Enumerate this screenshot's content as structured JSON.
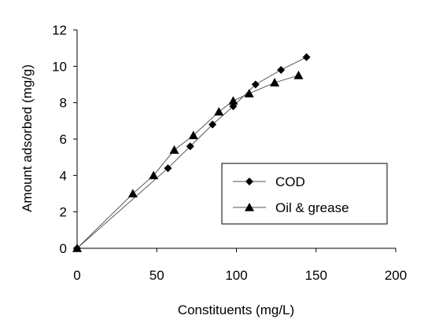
{
  "chart_data": {
    "type": "line",
    "xlabel": "Constituents (mg/L)",
    "ylabel": "Amount adsorbed (mg/g)",
    "xlim": [
      0,
      200
    ],
    "ylim": [
      0,
      12
    ],
    "xticks": [
      0,
      50,
      100,
      150,
      200
    ],
    "yticks": [
      0,
      2,
      4,
      6,
      8,
      10,
      12
    ],
    "grid": false,
    "legend": "right-center",
    "series": [
      {
        "name": "COD",
        "marker": "diamond",
        "color": "#000000",
        "points": [
          [
            0,
            0
          ],
          [
            57,
            4.4
          ],
          [
            71,
            5.6
          ],
          [
            85,
            6.8
          ],
          [
            98,
            7.8
          ],
          [
            112,
            9.0
          ],
          [
            128,
            9.8
          ],
          [
            144,
            10.5
          ]
        ]
      },
      {
        "name": "Oil & grease",
        "marker": "triangle",
        "color": "#000000",
        "points": [
          [
            0,
            0
          ],
          [
            35,
            3.0
          ],
          [
            48,
            4.0
          ],
          [
            61,
            5.4
          ],
          [
            73,
            6.2
          ],
          [
            89,
            7.5
          ],
          [
            98,
            8.1
          ],
          [
            108,
            8.5
          ],
          [
            124,
            9.1
          ],
          [
            139,
            9.5
          ]
        ]
      }
    ]
  }
}
